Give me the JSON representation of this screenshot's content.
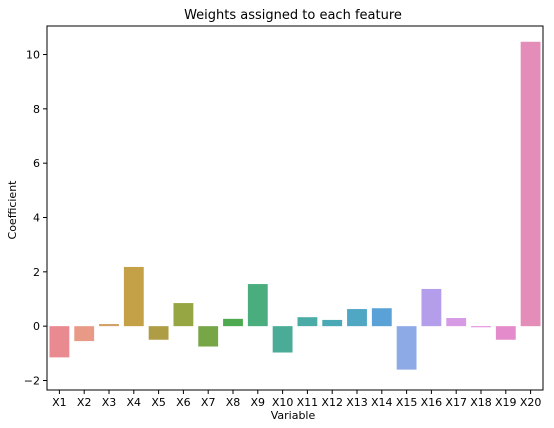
{
  "chart_data": {
    "type": "bar",
    "title": "Weights assigned to each feature",
    "xlabel": "Variable",
    "ylabel": "Coefficient",
    "categories": [
      "X1",
      "X2",
      "X3",
      "X4",
      "X5",
      "X6",
      "X7",
      "X8",
      "X9",
      "X10",
      "X11",
      "X12",
      "X13",
      "X14",
      "X15",
      "X16",
      "X17",
      "X18",
      "X19",
      "X20"
    ],
    "values": [
      -1.15,
      -0.55,
      0.08,
      2.18,
      -0.5,
      0.85,
      -0.75,
      0.27,
      1.55,
      -0.97,
      0.33,
      0.23,
      0.63,
      0.66,
      -1.6,
      1.37,
      0.3,
      -0.04,
      -0.5,
      10.47
    ],
    "colors": [
      "#e88a8f",
      "#e99a86",
      "#d3a26a",
      "#c4a047",
      "#ae9d45",
      "#96a642",
      "#77a646",
      "#4ea950",
      "#49ad7e",
      "#4aac96",
      "#4aaba7",
      "#4ba9b5",
      "#4fa7c3",
      "#59a1d7",
      "#8eaae6",
      "#b49dea",
      "#d79be6",
      "#e48ddc",
      "#e48bcb",
      "#e58db9"
    ],
    "ylim": [
      -2.35,
      11.05
    ],
    "yticks": [
      -2,
      0,
      2,
      4,
      6,
      8,
      10
    ],
    "grid": false
  }
}
